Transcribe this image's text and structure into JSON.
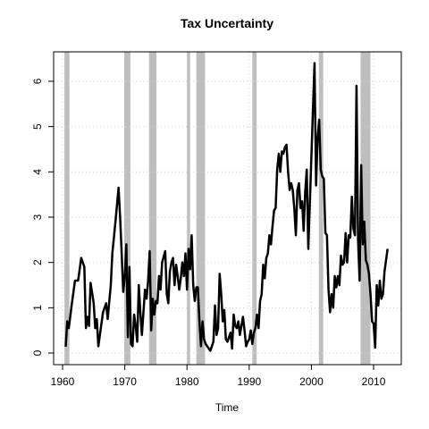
{
  "chart_data": {
    "type": "line",
    "title": "Tax Uncertainty",
    "x_label": "Time",
    "color": "#000000",
    "shade_color": "#bebebe",
    "grid": true,
    "xlim": [
      1958.56,
      2014.45
    ],
    "ylim": [
      -0.256,
      6.65
    ],
    "xticks": [
      1960,
      1970,
      1980,
      1990,
      2000,
      2010
    ],
    "yticks": [
      0,
      1,
      2,
      3,
      4,
      5,
      6
    ],
    "shaded_regions": [
      [
        1960.3,
        1961.1
      ],
      [
        1969.9,
        1970.9
      ],
      [
        1973.9,
        1975.1
      ],
      [
        1980.0,
        1980.5
      ],
      [
        1981.5,
        1982.9
      ],
      [
        1990.5,
        1991.2
      ],
      [
        2001.2,
        2001.9
      ],
      [
        2007.9,
        2009.5
      ]
    ],
    "x": [
      1960.5,
      1960.75,
      1961,
      1961.5,
      1962,
      1962.5,
      1963,
      1963.5,
      1963.75,
      1964,
      1964.25,
      1964.5,
      1965,
      1965.25,
      1965.5,
      1965.75,
      1966,
      1966.5,
      1967,
      1967.25,
      1967.75,
      1968,
      1968.5,
      1969,
      1969.25,
      1969.5,
      1969.75,
      1970,
      1970.25,
      1970.5,
      1970.75,
      1971,
      1971.25,
      1971.5,
      1971.75,
      1972,
      1972.25,
      1972.5,
      1972.75,
      1973,
      1973.25,
      1973.5,
      1973.75,
      1974,
      1974.25,
      1974.5,
      1974.75,
      1975,
      1975.25,
      1975.5,
      1975.75,
      1976,
      1976.5,
      1976.75,
      1977,
      1977.25,
      1977.5,
      1977.75,
      1978,
      1978.25,
      1978.5,
      1978.75,
      1979,
      1979.25,
      1979.5,
      1979.75,
      1980,
      1980.25,
      1980.5,
      1980.75,
      1981,
      1981.25,
      1981.5,
      1981.75,
      1982,
      1982.25,
      1982.5,
      1982.75,
      1983,
      1983.5,
      1983.75,
      1984,
      1984.25,
      1984.5,
      1984.75,
      1985,
      1985.25,
      1985.5,
      1985.75,
      1986,
      1986.25,
      1986.5,
      1986.75,
      1987,
      1987.25,
      1987.5,
      1987.75,
      1988,
      1988.25,
      1988.5,
      1988.75,
      1989,
      1989.25,
      1989.5,
      1989.75,
      1990,
      1990.25,
      1990.5,
      1990.75,
      1991,
      1991.25,
      1991.5,
      1991.75,
      1992,
      1992.25,
      1992.5,
      1992.75,
      1993,
      1993.25,
      1993.5,
      1993.75,
      1994,
      1994.25,
      1994.5,
      1994.75,
      1995,
      1995.25,
      1995.5,
      1995.75,
      1996,
      1996.25,
      1996.5,
      1996.75,
      1997,
      1997.25,
      1997.5,
      1997.75,
      1998,
      1998.25,
      1998.5,
      1998.75,
      1999,
      1999.25,
      1999.5,
      2000.5,
      2000.75,
      2001,
      2001.25,
      2001.5,
      2001.75,
      2002,
      2002.25,
      2002.5,
      2002.75,
      2003,
      2003.25,
      2003.5,
      2003.75,
      2004,
      2004.25,
      2004.5,
      2004.75,
      2005,
      2005.25,
      2005.5,
      2005.75,
      2006,
      2006.25,
      2006.5,
      2006.75,
      2007,
      2007.25,
      2007.5,
      2007.75,
      2008,
      2008.25,
      2008.5,
      2008.75,
      2009,
      2009.25,
      2009.5,
      2009.75,
      2010,
      2010.25,
      2010.5,
      2010.75,
      2011,
      2011.25,
      2011.5,
      2011.75,
      2012.25
    ],
    "values": [
      0.14,
      0.7,
      0.55,
      1.1,
      1.6,
      1.6,
      2.1,
      1.9,
      0.55,
      0.8,
      0.6,
      1.55,
      1.1,
      0.55,
      0.75,
      0.15,
      0.4,
      0.9,
      1.1,
      0.75,
      1.5,
      2.2,
      2.9,
      3.65,
      3.0,
      2.2,
      1.35,
      1.7,
      2.4,
      0.35,
      1.9,
      0.2,
      0.15,
      0.85,
      0.6,
      0.25,
      1.5,
      0.9,
      0.4,
      0.9,
      1.4,
      1.2,
      1.6,
      2.25,
      0.5,
      1.2,
      0.85,
      1.15,
      1.1,
      1.7,
      1.4,
      2.0,
      2.25,
      1.3,
      1.1,
      1.8,
      2.0,
      2.1,
      1.5,
      1.95,
      1.7,
      1.4,
      1.65,
      2.0,
      1.7,
      2.2,
      1.4,
      2.3,
      1.85,
      2.6,
      1.5,
      1.15,
      1.45,
      1.45,
      0.7,
      0.15,
      0.7,
      0.3,
      0.2,
      0.1,
      0.05,
      0.15,
      0.25,
      1.05,
      0.4,
      0.55,
      1.75,
      1.3,
      0.7,
      0.95,
      0.3,
      0.25,
      0.35,
      0.45,
      0.1,
      0.85,
      0.6,
      0.55,
      0.7,
      0.4,
      0.6,
      0.8,
      0.5,
      0.15,
      0.25,
      0.3,
      0.5,
      0.2,
      0.45,
      0.55,
      0.85,
      0.55,
      1.15,
      1.3,
      1.95,
      1.65,
      2.1,
      2.2,
      2.6,
      2.4,
      2.8,
      3.15,
      3.2,
      4.05,
      4.4,
      4.0,
      4.45,
      4.4,
      4.55,
      4.6,
      4.0,
      3.6,
      3.75,
      3.6,
      3.2,
      2.6,
      3.6,
      3.75,
      3.2,
      3.35,
      2.7,
      3.55,
      4.05,
      2.3,
      6.4,
      3.7,
      4.75,
      5.15,
      4.05,
      3.9,
      3.85,
      2.65,
      2.6,
      1.4,
      0.9,
      1.3,
      1.0,
      1.7,
      1.45,
      1.7,
      1.5,
      2.15,
      1.95,
      2.0,
      2.65,
      2.0,
      2.6,
      2.55,
      3.45,
      2.75,
      2.6,
      5.9,
      2.5,
      1.6,
      4.15,
      2.4,
      2.9,
      2.05,
      1.95,
      1.75,
      1.3,
      0.7,
      0.65,
      0.12,
      1.5,
      1.05,
      1.6,
      1.2,
      1.3,
      1.8,
      2.3
    ]
  }
}
